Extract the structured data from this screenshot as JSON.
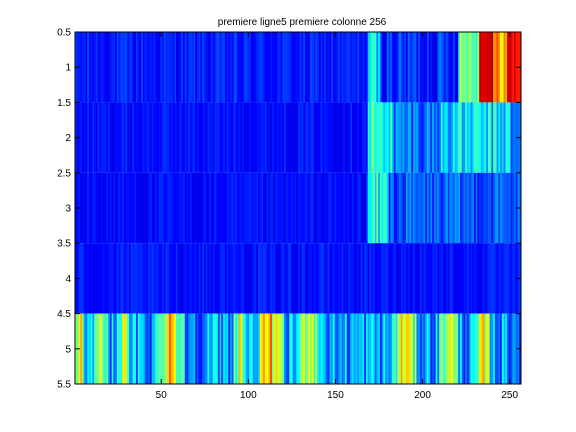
{
  "chart_data": {
    "type": "heatmap",
    "title": "premiere ligne5 premiere colonne 256",
    "xlabel": "",
    "ylabel": "",
    "colormap": "jet",
    "color_range": [
      0,
      1
    ],
    "xlim": [
      0.5,
      256.5
    ],
    "ylim": [
      0.5,
      5.5
    ],
    "y_reversed": true,
    "grid": false,
    "x_ticks": [
      50,
      100,
      150,
      200,
      250
    ],
    "y_ticks": [
      0.5,
      1,
      1.5,
      2,
      2.5,
      3,
      3.5,
      4,
      4.5,
      5,
      5.5
    ],
    "rows": [
      {
        "row": 1,
        "segments": [
          {
            "from": 1,
            "to": 168,
            "base": 0.15,
            "var": 0.05
          },
          {
            "from": 169,
            "to": 175,
            "base": 0.33,
            "var": 0.12
          },
          {
            "from": 176,
            "to": 220,
            "base": 0.17,
            "var": 0.08
          },
          {
            "from": 221,
            "to": 232,
            "base": 0.5,
            "var": 0.1
          },
          {
            "from": 233,
            "to": 240,
            "base": 0.93,
            "var": 0.04
          },
          {
            "from": 241,
            "to": 248,
            "base": 0.72,
            "var": 0.1
          },
          {
            "from": 249,
            "to": 256,
            "base": 0.88,
            "var": 0.08
          }
        ]
      },
      {
        "row": 2,
        "segments": [
          {
            "from": 1,
            "to": 168,
            "base": 0.14,
            "var": 0.04
          },
          {
            "from": 169,
            "to": 182,
            "base": 0.4,
            "var": 0.1
          },
          {
            "from": 183,
            "to": 210,
            "base": 0.24,
            "var": 0.1
          },
          {
            "from": 211,
            "to": 250,
            "base": 0.34,
            "var": 0.12
          },
          {
            "from": 251,
            "to": 256,
            "base": 0.22,
            "var": 0.06
          }
        ]
      },
      {
        "row": 3,
        "segments": [
          {
            "from": 1,
            "to": 168,
            "base": 0.13,
            "var": 0.04
          },
          {
            "from": 169,
            "to": 180,
            "base": 0.38,
            "var": 0.12
          },
          {
            "from": 181,
            "to": 256,
            "base": 0.21,
            "var": 0.08
          }
        ]
      },
      {
        "row": 4,
        "segments": [
          {
            "from": 1,
            "to": 256,
            "base": 0.14,
            "var": 0.04
          }
        ]
      },
      {
        "row": 5,
        "segments": [
          {
            "from": 1,
            "to": 256,
            "base": 0.28,
            "var": 0.14
          }
        ],
        "peaks": [
          {
            "at": 3,
            "width": 3,
            "value": 0.4
          },
          {
            "at": 15,
            "width": 4,
            "value": 0.36
          },
          {
            "at": 28,
            "width": 4,
            "value": 0.3
          },
          {
            "at": 55,
            "width": 8,
            "value": 0.48
          },
          {
            "at": 95,
            "width": 4,
            "value": 0.35
          },
          {
            "at": 112,
            "width": 9,
            "value": 0.44
          },
          {
            "at": 135,
            "width": 8,
            "value": 0.38
          },
          {
            "at": 190,
            "width": 8,
            "value": 0.4
          },
          {
            "at": 215,
            "width": 6,
            "value": 0.36
          },
          {
            "at": 235,
            "width": 5,
            "value": 0.34
          }
        ]
      }
    ]
  }
}
